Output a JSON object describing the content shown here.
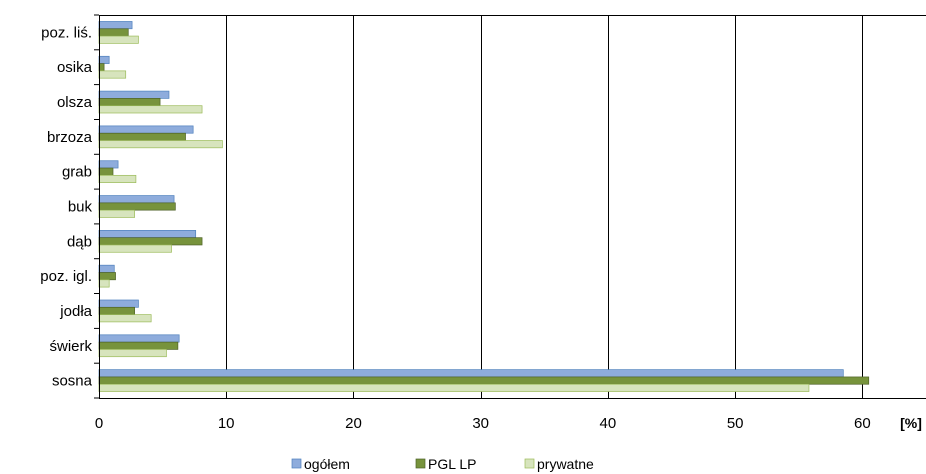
{
  "chart_data": {
    "type": "bar",
    "orientation": "horizontal",
    "categories": [
      "poz. liś.",
      "osika",
      "olsza",
      "brzoza",
      "grab",
      "buk",
      "dąb",
      "poz. igl.",
      "jodła",
      "świerk",
      "sosna"
    ],
    "series": [
      {
        "name": "ogółem",
        "color": "#8eacdc",
        "stroke": "#4f81bd",
        "values": [
          2.6,
          0.8,
          5.5,
          7.4,
          1.5,
          5.9,
          7.6,
          1.2,
          3.1,
          6.3,
          58.5
        ]
      },
      {
        "name": "PGL LP",
        "color": "#77933c",
        "stroke": "#4f6228",
        "values": [
          2.3,
          0.4,
          4.8,
          6.8,
          1.1,
          6.0,
          8.1,
          1.3,
          2.8,
          6.2,
          60.5
        ]
      },
      {
        "name": "prywatne",
        "color": "#d7e4bd",
        "stroke": "#9bbb59",
        "values": [
          3.1,
          2.1,
          8.1,
          9.7,
          2.9,
          2.8,
          5.7,
          0.8,
          4.1,
          5.3,
          55.8
        ]
      }
    ],
    "xlim": [
      0,
      65
    ],
    "xticks": [
      0,
      10,
      20,
      30,
      40,
      50,
      60
    ],
    "unit_label": "[%]",
    "grid": "vertical",
    "legend_position": "bottom"
  }
}
